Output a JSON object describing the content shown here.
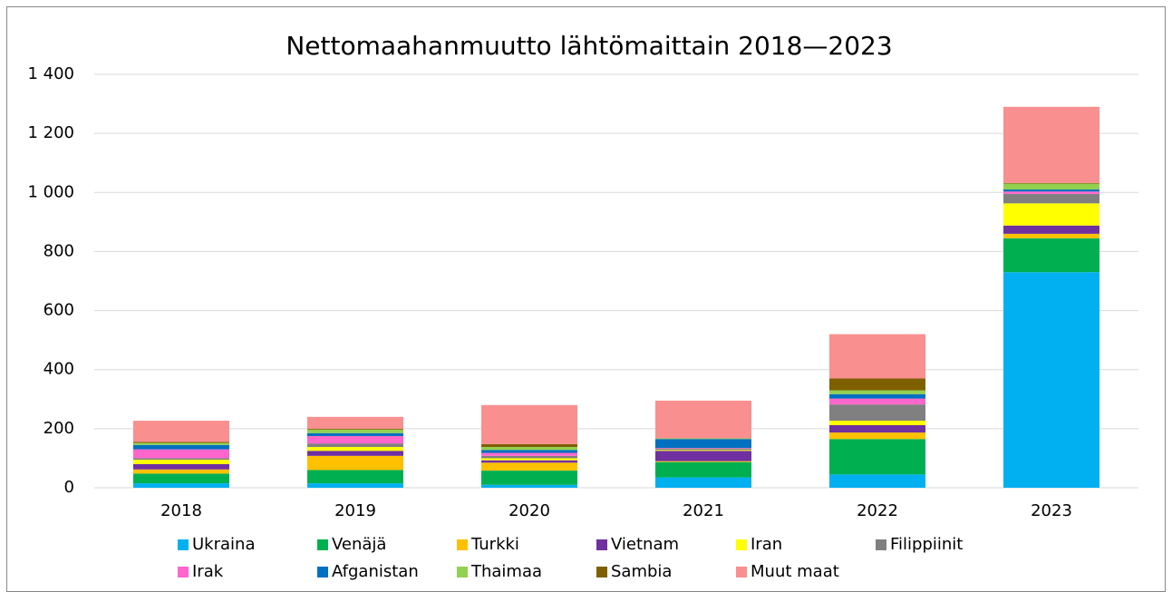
{
  "chart_data": {
    "type": "stacked-bar",
    "title": "Nettomaahanmuutto lähtömaittain 2018—2023",
    "categories": [
      "2018",
      "2019",
      "2020",
      "2021",
      "2022",
      "2023"
    ],
    "series": [
      {
        "name": "Ukraina",
        "color": "#00b0f0",
        "values": [
          15,
          15,
          10,
          35,
          45,
          730
        ]
      },
      {
        "name": "Venäjä",
        "color": "#00b050",
        "values": [
          33,
          45,
          48,
          52,
          120,
          115
        ]
      },
      {
        "name": "Turkki",
        "color": "#ffc000",
        "values": [
          14,
          48,
          27,
          3,
          22,
          15
        ]
      },
      {
        "name": "Vietnam",
        "color": "#7030a0",
        "values": [
          18,
          17,
          8,
          35,
          25,
          28
        ]
      },
      {
        "name": "Iran",
        "color": "#ffff00",
        "values": [
          15,
          13,
          7,
          3,
          15,
          75
        ]
      },
      {
        "name": "Filippiinit",
        "color": "#808080",
        "values": [
          5,
          12,
          8,
          5,
          55,
          32
        ]
      },
      {
        "name": "Irak",
        "color": "#ff66cc",
        "values": [
          30,
          25,
          10,
          2,
          20,
          8
        ]
      },
      {
        "name": "Afganistan",
        "color": "#0070c0",
        "values": [
          15,
          10,
          10,
          30,
          15,
          7
        ]
      },
      {
        "name": "Thaimaa",
        "color": "#92d050",
        "values": [
          7,
          12,
          10,
          2,
          13,
          20
        ]
      },
      {
        "name": "Sambia",
        "color": "#7f6000",
        "values": [
          3,
          3,
          10,
          1,
          40,
          2
        ]
      },
      {
        "name": "Muut maat",
        "color": "#f98f8f",
        "values": [
          72,
          40,
          132,
          127,
          150,
          258
        ]
      }
    ],
    "ylim": [
      0,
      1400
    ],
    "yticks": [
      0,
      200,
      400,
      600,
      800,
      {
        "value": 1000,
        "label": "1 000"
      },
      {
        "value": 1200,
        "label": "1 200"
      },
      {
        "value": 1400,
        "label": "1 400"
      }
    ],
    "grid": true
  }
}
